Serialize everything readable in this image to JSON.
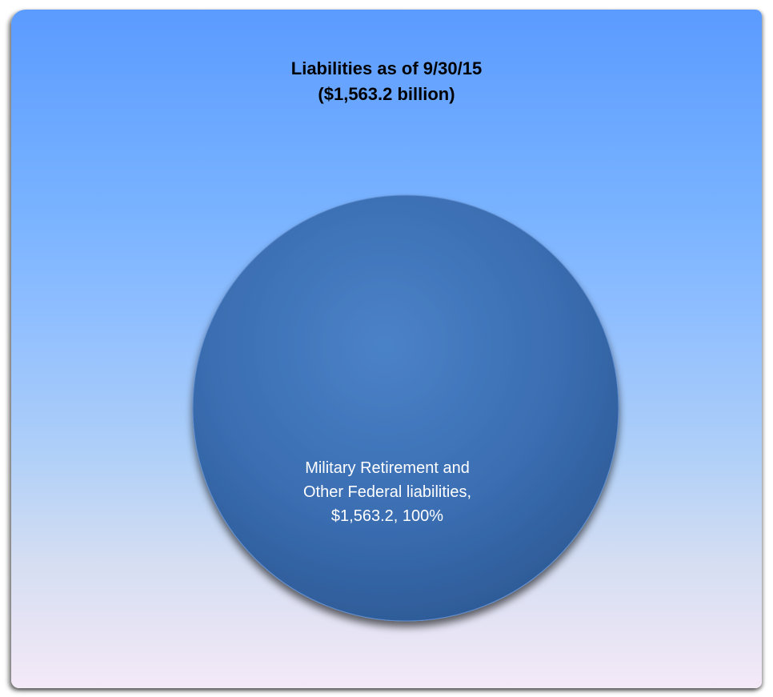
{
  "chart_data": {
    "type": "pie",
    "title": "Liabilities as of 9/30/15",
    "subtitle": "($1,563.2 billion)",
    "slices": [
      {
        "label_lines": [
          "Military Retirement and",
          "Other Federal liabilities,"
        ],
        "value": 1563.2,
        "value_text": "$1,563.2",
        "percent": 100,
        "percent_text": "100%",
        "color": "#3b6fb4"
      }
    ]
  },
  "colors": {
    "background_top": "#5b9bff",
    "background_bottom": "#f4e9f7",
    "slice": "#3b6fb4",
    "title_text": "#000000",
    "label_text": "#ffffff"
  }
}
